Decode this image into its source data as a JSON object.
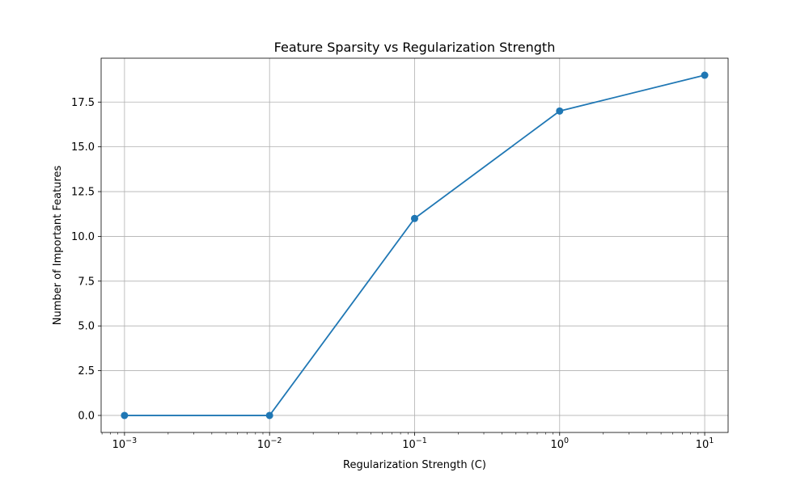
{
  "chart_data": {
    "type": "line",
    "title": "Feature Sparsity vs Regularization Strength",
    "xlabel": "Regularization Strength (C)",
    "ylabel": "Number of Important Features",
    "xscale": "log",
    "grid": true,
    "x": [
      0.001,
      0.01,
      0.1,
      1,
      10
    ],
    "xlim": [
      0.00069,
      14.5
    ],
    "ylim": [
      -0.95,
      19.95
    ],
    "x_ticks": [
      {
        "value": 0.001,
        "base": "10",
        "exp": "−3"
      },
      {
        "value": 0.01,
        "base": "10",
        "exp": "−2"
      },
      {
        "value": 0.1,
        "base": "10",
        "exp": "−1"
      },
      {
        "value": 1,
        "base": "10",
        "exp": "0"
      },
      {
        "value": 10,
        "base": "10",
        "exp": "1"
      }
    ],
    "y_ticks": [
      {
        "value": 0.0,
        "label": "0.0"
      },
      {
        "value": 2.5,
        "label": "2.5"
      },
      {
        "value": 5.0,
        "label": "5.0"
      },
      {
        "value": 7.5,
        "label": "7.5"
      },
      {
        "value": 10.0,
        "label": "10.0"
      },
      {
        "value": 12.5,
        "label": "12.5"
      },
      {
        "value": 15.0,
        "label": "15.0"
      },
      {
        "value": 17.5,
        "label": "17.5"
      }
    ],
    "series": [
      {
        "values": [
          0,
          0,
          11,
          17,
          19
        ],
        "color": "#1f77b4",
        "marker": "circle"
      }
    ]
  }
}
